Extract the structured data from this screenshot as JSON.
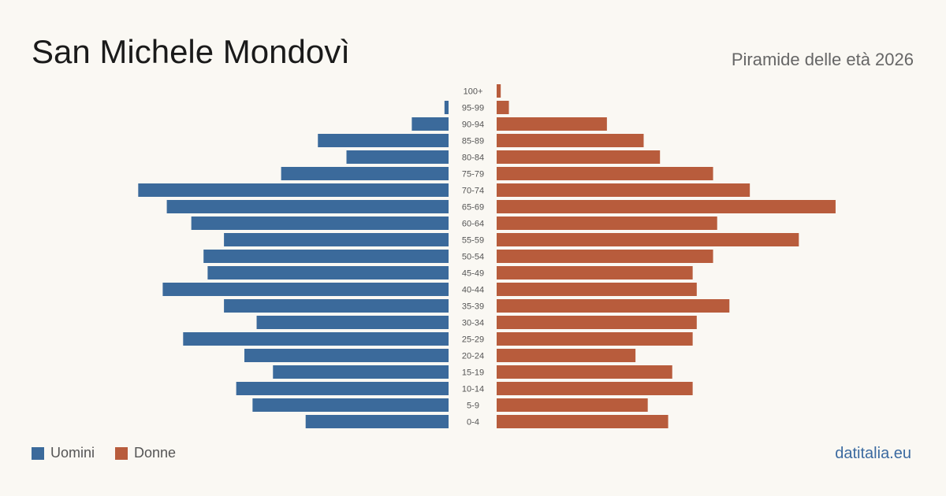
{
  "header": {
    "title": "San Michele Mondovì",
    "subtitle": "Piramide delle età 2026"
  },
  "footer": {
    "source": "datitalia.eu"
  },
  "colors": {
    "men": "#3b6a9b",
    "women": "#b85c3c"
  },
  "chart_data": {
    "type": "bar",
    "orientation": "horizontal-pyramid",
    "categories": [
      "100+",
      "95-99",
      "90-94",
      "85-89",
      "80-84",
      "75-79",
      "70-74",
      "65-69",
      "60-64",
      "55-59",
      "50-54",
      "45-49",
      "40-44",
      "35-39",
      "30-34",
      "25-29",
      "20-24",
      "15-19",
      "10-14",
      "5-9",
      "0-4"
    ],
    "series": [
      {
        "name": "Uomini",
        "values": [
          0,
          1,
          9,
          32,
          25,
          41,
          76,
          69,
          63,
          55,
          60,
          59,
          70,
          55,
          47,
          65,
          50,
          43,
          52,
          48,
          35
        ]
      },
      {
        "name": "Donne",
        "values": [
          1,
          3,
          27,
          36,
          40,
          53,
          62,
          83,
          54,
          74,
          53,
          48,
          49,
          57,
          49,
          48,
          34,
          43,
          48,
          37,
          42
        ]
      }
    ],
    "legend_position": "bottom-left",
    "grid": false
  }
}
